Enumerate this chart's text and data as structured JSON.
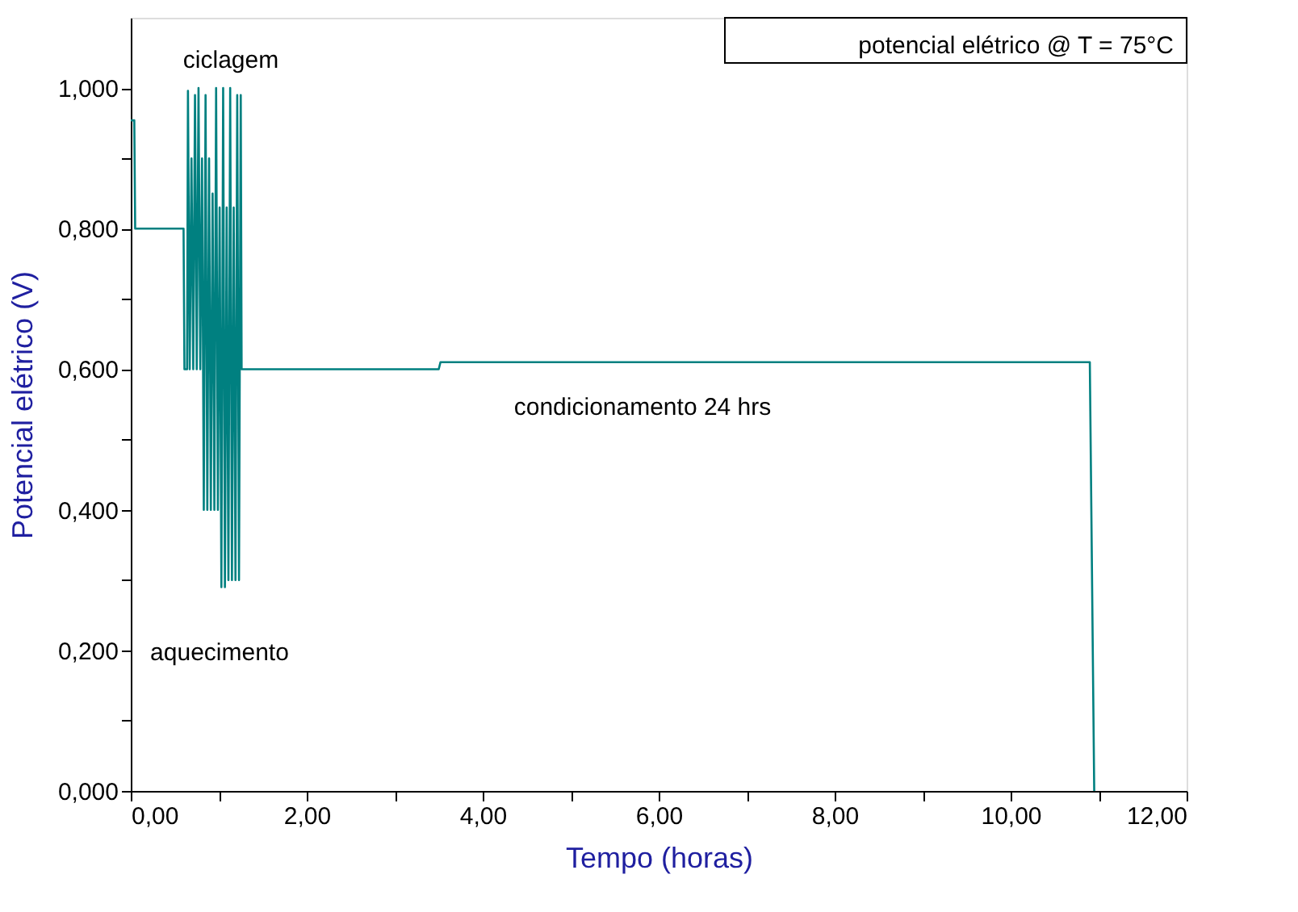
{
  "chart_data": {
    "type": "line",
    "xlabel": "Tempo (horas)",
    "ylabel": "Potencial elétrico (V)",
    "x": [
      0,
      0.04,
      0.05,
      0.6,
      0.61,
      0.64,
      0.65,
      0.67,
      0.69,
      0.71,
      0.73,
      0.75,
      0.77,
      0.79,
      0.81,
      0.83,
      0.85,
      0.87,
      0.89,
      0.91,
      0.93,
      0.95,
      0.97,
      0.99,
      1.01,
      1.03,
      1.05,
      1.07,
      1.09,
      1.11,
      1.13,
      1.15,
      1.17,
      1.19,
      1.21,
      1.23,
      1.25,
      1.26,
      3.5,
      3.52,
      10.9,
      10.95
    ],
    "series": [
      {
        "name": "potencial elétrico @ T = 75°C",
        "color": "#008080",
        "values": [
          0.954,
          0.954,
          0.8,
          0.8,
          0.6,
          0.6,
          0.996,
          0.6,
          0.9,
          0.6,
          0.99,
          0.6,
          1.0,
          0.6,
          0.9,
          0.4,
          0.99,
          0.4,
          0.9,
          0.4,
          0.85,
          0.4,
          1.0,
          0.4,
          0.83,
          0.29,
          1.0,
          0.29,
          0.83,
          0.3,
          1.0,
          0.3,
          0.83,
          0.3,
          0.99,
          0.3,
          0.99,
          0.6,
          0.6,
          0.61,
          0.61,
          0
        ]
      }
    ],
    "xlim": [
      0,
      12
    ],
    "ylim": [
      0,
      1.1
    ],
    "xticks": [
      {
        "value": 0,
        "label": "0,00"
      },
      {
        "value": 1,
        "label": null
      },
      {
        "value": 2,
        "label": "2,00"
      },
      {
        "value": 3,
        "label": null
      },
      {
        "value": 4,
        "label": "4,00"
      },
      {
        "value": 5,
        "label": null
      },
      {
        "value": 6,
        "label": "6,00"
      },
      {
        "value": 7,
        "label": null
      },
      {
        "value": 8,
        "label": "8,00"
      },
      {
        "value": 9,
        "label": null
      },
      {
        "value": 10,
        "label": "10,00"
      },
      {
        "value": 11,
        "label": null
      },
      {
        "value": 12,
        "label": "12,00"
      }
    ],
    "yticks": [
      {
        "value": 0,
        "label": "0,000"
      },
      {
        "value": 0.1,
        "label": null
      },
      {
        "value": 0.2,
        "label": "0,200"
      },
      {
        "value": 0.3,
        "label": null
      },
      {
        "value": 0.4,
        "label": "0,400"
      },
      {
        "value": 0.5,
        "label": null
      },
      {
        "value": 0.6,
        "label": "0,600"
      },
      {
        "value": 0.7,
        "label": null
      },
      {
        "value": 0.8,
        "label": "0,800"
      },
      {
        "value": 0.9,
        "label": null
      },
      {
        "value": 1.0,
        "label": "1,000"
      }
    ],
    "annotations": [
      "ciclagem",
      "aquecimento",
      "condicionamento 24 hrs"
    ],
    "legend": "top right",
    "grid": false,
    "line_style": "solid",
    "marker": "none"
  }
}
